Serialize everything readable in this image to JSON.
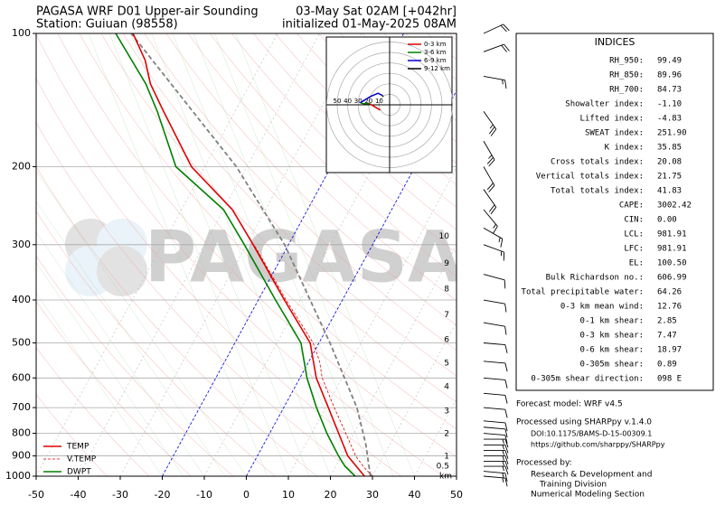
{
  "chart_data": {
    "type": "skewt",
    "title": "PAGASA WRF D01 Upper-air Sounding",
    "subtitle": "Station: Guiuan (98558)",
    "title_right": "03-May Sat 02AM [+042hr]",
    "subtitle_right": "initialized 01-May-2025 08AM",
    "watermark": "PAGASA",
    "xlim": [
      -50,
      50
    ],
    "xticks": [
      -50,
      -40,
      -30,
      -20,
      -10,
      0,
      10,
      20,
      30,
      40,
      50
    ],
    "ylim": [
      100,
      1000
    ],
    "yticks": [
      100,
      200,
      300,
      400,
      500,
      600,
      700,
      800,
      900,
      1000
    ],
    "log_y": true,
    "grid": true,
    "highlight_isotherms": [
      -20,
      0
    ],
    "highlight_color": "#0000dd",
    "legend": "lower left",
    "series": [
      {
        "name": "TEMP",
        "color": "#e00000",
        "style": "solid",
        "pressure": [
          1000,
          900,
          800,
          700,
          600,
          500,
          400,
          300,
          250,
          200,
          150,
          130,
          115,
          100
        ],
        "values": [
          28.1,
          21.5,
          16.4,
          10.6,
          3.9,
          -2.1,
          -13.8,
          -28.4,
          -37.9,
          -53.2,
          -67,
          -73.7,
          -78,
          -84.4
        ]
      },
      {
        "name": "V.TEMP",
        "color": "#e00000",
        "style": "dashed",
        "pressure": [
          1000,
          950,
          900,
          800,
          700,
          600,
          550,
          500,
          400,
          300
        ],
        "values": [
          30.0,
          26.5,
          23.4,
          18.1,
          12.0,
          5.3,
          2.5,
          -1.4,
          -13.4,
          -28.2
        ]
      },
      {
        "name": "DWPT",
        "color": "#008000",
        "style": "solid",
        "pressure": [
          1000,
          950,
          900,
          800,
          700,
          600,
          500,
          400,
          300,
          250,
          200,
          150,
          130,
          100
        ],
        "values": [
          25.9,
          22.2,
          19.3,
          13.6,
          7.8,
          1.7,
          -4.3,
          -15.9,
          -30.5,
          -40,
          -56.9,
          -68.5,
          -74.8,
          -88.5
        ]
      }
    ],
    "parcel": {
      "color": "#808080",
      "pressure": [
        1000,
        850,
        700,
        500,
        300,
        200,
        100
      ],
      "values": [
        29.5,
        24.4,
        17.4,
        2.6,
        -20.9,
        -42.5,
        -84.8
      ]
    },
    "height_unit": "km",
    "heights": [
      {
        "km": 10,
        "pressure": 287
      },
      {
        "km": 9,
        "pressure": 331
      },
      {
        "km": 8,
        "pressure": 378
      },
      {
        "km": 7,
        "pressure": 432
      },
      {
        "km": 6,
        "pressure": 492
      },
      {
        "km": 5,
        "pressure": 556
      },
      {
        "km": 4,
        "pressure": 628
      },
      {
        "km": 3,
        "pressure": 713
      },
      {
        "km": 2,
        "pressure": 802
      },
      {
        "km": 1,
        "pressure": 901
      },
      {
        "km": 0.5,
        "pressure": 950
      }
    ],
    "wind": {
      "pressure": [
        1000,
        975,
        950,
        925,
        900,
        875,
        850,
        825,
        800,
        775,
        750,
        700,
        650,
        600,
        550,
        500,
        450,
        400,
        350,
        300,
        275,
        250,
        225,
        200,
        175,
        150,
        125,
        110,
        100
      ],
      "speed": [
        15,
        15,
        15,
        15,
        15,
        15,
        15,
        15,
        10,
        10,
        10,
        10,
        10,
        10,
        10,
        10,
        10,
        10,
        10,
        15,
        15,
        15,
        20,
        20,
        25,
        25,
        15,
        20,
        20
      ],
      "direction": [
        95,
        95,
        90,
        90,
        90,
        90,
        90,
        90,
        95,
        95,
        95,
        95,
        95,
        95,
        95,
        95,
        100,
        100,
        105,
        110,
        120,
        140,
        145,
        150,
        150,
        145,
        100,
        70,
        65
      ]
    },
    "hodograph": {
      "rings": [
        50,
        40,
        30,
        20,
        10
      ],
      "series": [
        {
          "name": "0-3 km",
          "color": "#e00000",
          "u": [
            -9,
            -14,
            -19
          ],
          "v": [
            -5,
            -2,
            1
          ]
        },
        {
          "name": "3-6 km",
          "color": "#008000",
          "u": [
            -19,
            -25,
            -28
          ],
          "v": [
            1,
            1,
            2
          ]
        },
        {
          "name": "6-9 km",
          "color": "#0000cc",
          "u": [
            -28,
            -18,
            -11,
            -7
          ],
          "v": [
            2,
            8,
            11,
            9
          ]
        },
        {
          "name": "9-12 km",
          "color": "#000000",
          "u": [
            -7,
            -6
          ],
          "v": [
            9,
            8
          ]
        }
      ]
    }
  },
  "indices_panel": {
    "title": "INDICES",
    "rows": [
      {
        "label": "RH_950:",
        "value": "99.49"
      },
      {
        "label": "RH_850:",
        "value": "89.96"
      },
      {
        "label": "RH_700:",
        "value": "84.73"
      },
      {
        "label": "Showalter index:",
        "value": "-1.10"
      },
      {
        "label": "Lifted index:",
        "value": "-4.83"
      },
      {
        "label": "SWEAT index:",
        "value": "251.90"
      },
      {
        "label": "K index:",
        "value": "35.85"
      },
      {
        "label": "Cross totals index:",
        "value": "20.08"
      },
      {
        "label": "Vertical totals index:",
        "value": "21.75"
      },
      {
        "label": "Total totals index:",
        "value": "41.83"
      },
      {
        "label": "CAPE:",
        "value": "3002.42"
      },
      {
        "label": "CIN:",
        "value": "0.00"
      },
      {
        "label": "LCL:",
        "value": "981.91"
      },
      {
        "label": "LFC:",
        "value": "981.91"
      },
      {
        "label": "EL:",
        "value": "100.50"
      },
      {
        "label": "Bulk Richardson no.:",
        "value": "606.99"
      },
      {
        "label": "Total precipitable water:",
        "value": "64.26"
      },
      {
        "label": "0-3 km mean wind:",
        "value": "12.76"
      },
      {
        "label": "0-1 km shear:",
        "value": "2.85"
      },
      {
        "label": "0-3 km shear:",
        "value": "7.47"
      },
      {
        "label": "0-6 km shear:",
        "value": "18.97"
      },
      {
        "label": "0-305m shear:",
        "value": "0.89"
      },
      {
        "label": "0-305m shear direction:",
        "value": "098 E"
      }
    ]
  },
  "footer": {
    "model": "Forecast model: WRF v4.5",
    "processed": "Processed using SHARPpy v.1.4.0",
    "doi": "DOI:10.1175/BAMS-D-15-00309.1",
    "url": "https://github.com/sharppy/SHARPpy",
    "by": "Processed by:",
    "org1": "Research & Development and",
    "org2": "Training Division",
    "org3": "Numerical Modeling Section"
  }
}
